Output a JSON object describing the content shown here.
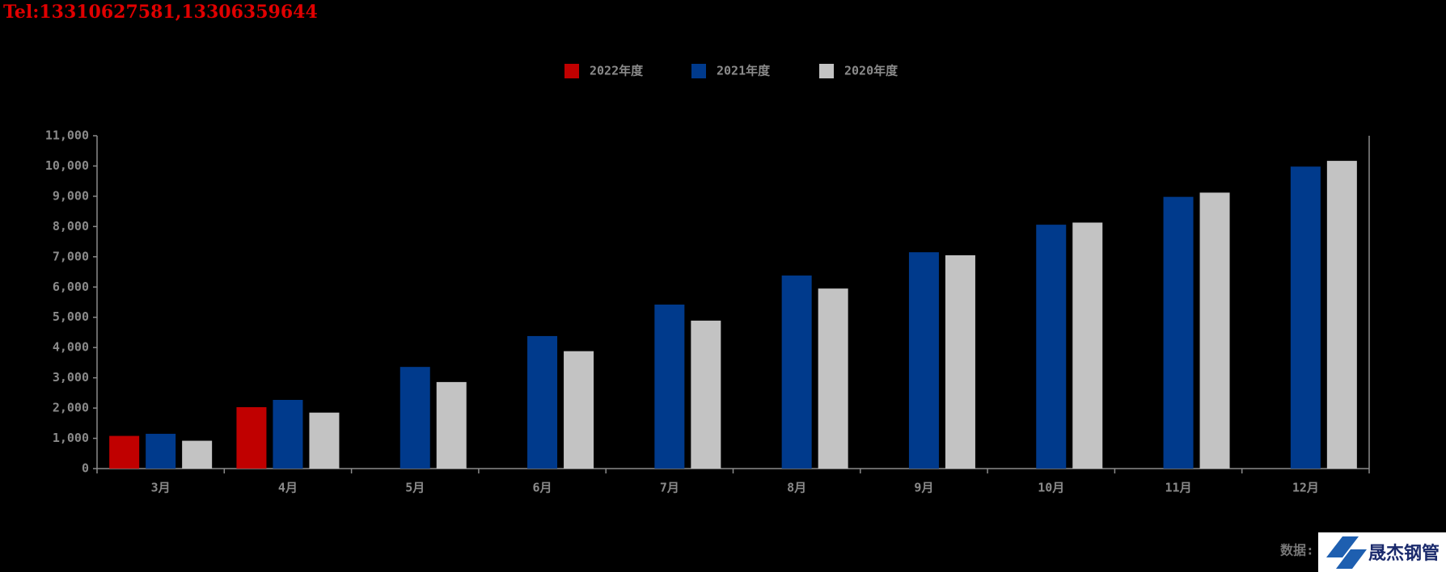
{
  "contact": "Tel:13310627581,13306359644",
  "source_note": "数据:",
  "logo": "晟杰钢管",
  "chart_data": {
    "type": "bar",
    "categories": [
      "3月",
      "4月",
      "5月",
      "6月",
      "7月",
      "8月",
      "9月",
      "10月",
      "11月",
      "12月"
    ],
    "series": [
      {
        "name": "2022年度",
        "color": "#c00000",
        "values": [
          1080,
          2030,
          null,
          null,
          null,
          null,
          null,
          null,
          null,
          null
        ]
      },
      {
        "name": "2021年度",
        "color": "#003a8c",
        "values": [
          1150,
          2270,
          3360,
          4380,
          5420,
          6380,
          7150,
          8060,
          8980,
          9980
        ]
      },
      {
        "name": "2020年度",
        "color": "#c3c3c3",
        "values": [
          920,
          1850,
          2860,
          3880,
          4890,
          5950,
          7050,
          8130,
          9120,
          10170
        ]
      }
    ],
    "ylim": [
      0,
      11000
    ],
    "yticks": [
      0,
      {
        "value": 1000,
        "label": "1,000"
      },
      {
        "value": 2000,
        "label": "2,000"
      },
      {
        "value": 3000,
        "label": "3,000"
      },
      {
        "value": 4000,
        "label": "4,000"
      },
      {
        "value": 5000,
        "label": "5,000"
      },
      {
        "value": 6000,
        "label": "6,000"
      },
      {
        "value": 7000,
        "label": "7,000"
      },
      {
        "value": 8000,
        "label": "8,000"
      },
      {
        "value": 9000,
        "label": "9,000"
      },
      {
        "value": 10000,
        "label": "10,000"
      },
      {
        "value": 11000,
        "label": "11,000"
      }
    ],
    "legend": "top"
  }
}
